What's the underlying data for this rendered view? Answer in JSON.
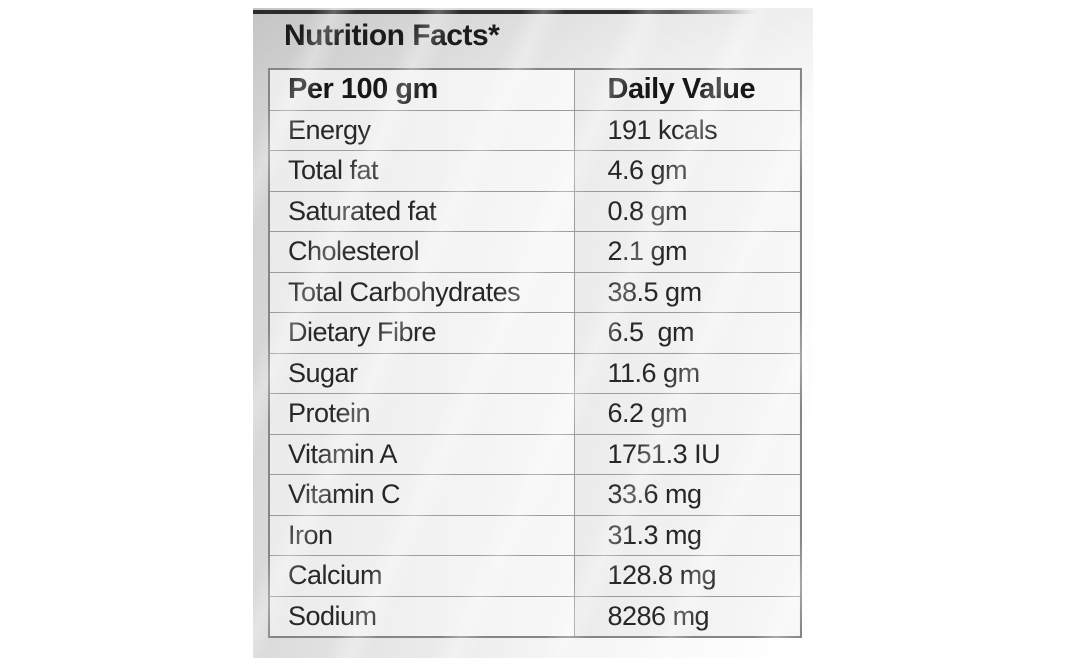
{
  "label": {
    "title": "Nutrition Facts*",
    "colors": {
      "label_background_start": "#cfcfcf",
      "label_background_end": "#ffffff",
      "top_edge_strip": "#2b2b2b",
      "table_border": "#9b9b9b",
      "text": "#272727"
    }
  },
  "table": {
    "headers": [
      "Per 100 gm",
      "Daily Value"
    ],
    "rows": [
      {
        "name": "Energy",
        "value": "191 kcals"
      },
      {
        "name": "Total fat",
        "value": "4.6 gm"
      },
      {
        "name": "Saturated fat",
        "value": "0.8 gm"
      },
      {
        "name": "Cholesterol",
        "value": "2.1 gm"
      },
      {
        "name": "Total Carbohydrates",
        "value": "38.5 gm"
      },
      {
        "name": "Dietary Fibre",
        "value": "6.5  gm"
      },
      {
        "name": "Sugar",
        "value": "11.6 gm"
      },
      {
        "name": "Protein",
        "value": "6.2 gm"
      },
      {
        "name": "Vitamin A",
        "value": "1751.3 IU"
      },
      {
        "name": "Vitamin C",
        "value": "33.6 mg"
      },
      {
        "name": "Iron",
        "value": "31.3 mg"
      },
      {
        "name": "Calcium",
        "value": "128.8 mg"
      },
      {
        "name": "Sodium",
        "value": "8286 mg"
      }
    ]
  }
}
